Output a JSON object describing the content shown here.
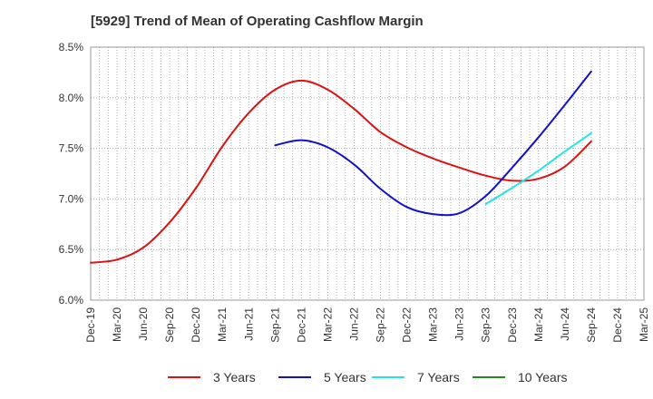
{
  "chart_data": {
    "type": "line",
    "title": "[5929]  Trend of Mean of Operating Cashflow Margin",
    "ylim": [
      6.0,
      8.5
    ],
    "yticks": [
      6.0,
      6.5,
      7.0,
      7.5,
      8.0,
      8.5
    ],
    "ytick_labels": [
      "6.0%",
      "6.5%",
      "7.0%",
      "7.5%",
      "8.0%",
      "8.5%"
    ],
    "categories": [
      "Dec-19",
      "Mar-20",
      "Jun-20",
      "Sep-20",
      "Dec-20",
      "Mar-21",
      "Jun-21",
      "Sep-21",
      "Dec-21",
      "Mar-22",
      "Jun-22",
      "Sep-22",
      "Dec-22",
      "Mar-23",
      "Jun-23",
      "Sep-23",
      "Dec-23",
      "Mar-24",
      "Jun-24",
      "Sep-24",
      "Dec-24",
      "Mar-25"
    ],
    "grid": true,
    "legend_position": "bottom",
    "series": [
      {
        "name": "3 Years",
        "color": "#dd1111",
        "values": [
          6.37,
          6.4,
          6.52,
          6.77,
          7.11,
          7.52,
          7.85,
          8.08,
          8.17,
          8.08,
          7.89,
          7.66,
          7.51,
          7.4,
          7.31,
          7.23,
          7.18,
          7.2,
          7.32,
          7.57,
          null,
          null
        ]
      },
      {
        "name": "5 Years",
        "color": "#1111cc",
        "values": [
          null,
          null,
          null,
          null,
          null,
          null,
          null,
          7.53,
          7.58,
          7.51,
          7.34,
          7.1,
          6.92,
          6.85,
          6.86,
          7.03,
          7.31,
          7.61,
          7.93,
          8.26,
          null,
          null
        ]
      },
      {
        "name": "7 Years",
        "color": "#22e5e5",
        "values": [
          null,
          null,
          null,
          null,
          null,
          null,
          null,
          null,
          null,
          null,
          null,
          null,
          null,
          null,
          null,
          6.95,
          7.11,
          7.28,
          7.47,
          7.65,
          null,
          null
        ]
      },
      {
        "name": "10 Years",
        "color": "#228822",
        "values": [
          null,
          null,
          null,
          null,
          null,
          null,
          null,
          null,
          null,
          null,
          null,
          null,
          null,
          null,
          null,
          null,
          null,
          null,
          null,
          null,
          null,
          null
        ]
      }
    ]
  }
}
